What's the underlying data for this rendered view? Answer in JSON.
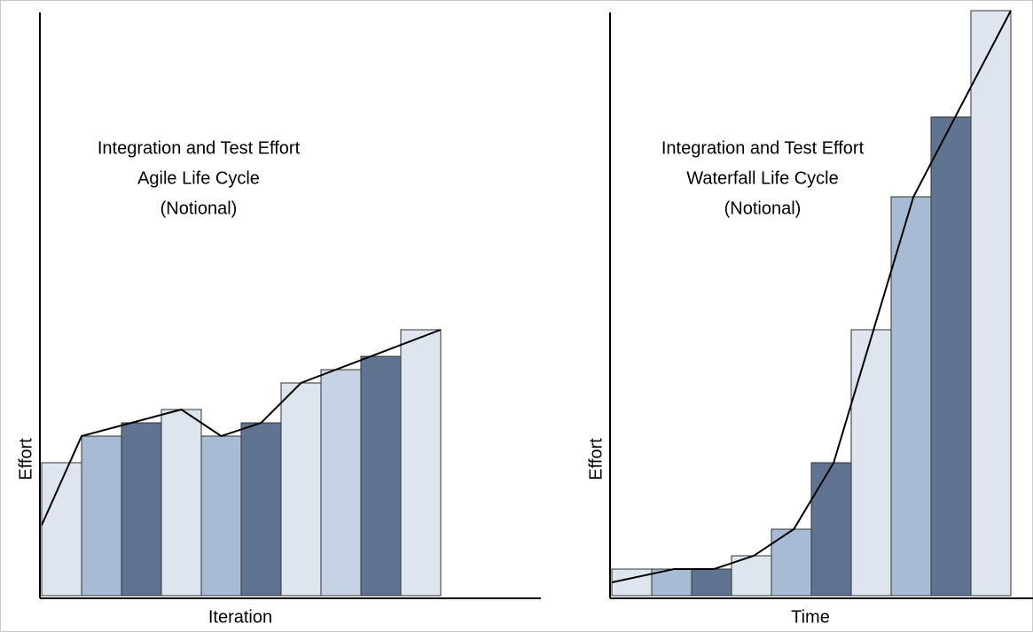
{
  "chart_data": [
    {
      "type": "bar",
      "title": [
        "Integration and Test Effort",
        "Agile Life Cycle",
        "(Notional)"
      ],
      "xlabel": "Iteration",
      "ylabel": "Effort",
      "values": [
        10,
        12,
        13,
        14,
        12,
        13,
        16,
        17,
        18,
        20
      ],
      "colors": [
        "#dde5ef",
        "#a8bbd5",
        "#607390",
        "#dde5ef",
        "#a8bbd5",
        "#607390",
        "#dde5ef",
        "#c6d3e4",
        "#607390",
        "#dde5ef"
      ],
      "line": {
        "x": [
          0,
          1,
          3.5,
          4.5,
          5.5,
          6.5,
          10
        ],
        "values": [
          5.3,
          12,
          14,
          12,
          13,
          16,
          20
        ],
        "color": "#000000"
      },
      "xlim": [
        0,
        10
      ],
      "ylim": [
        0,
        44
      ]
    },
    {
      "type": "bar",
      "title": [
        "Integration and Test Effort",
        "Waterfall Life Cycle",
        "(Notional)"
      ],
      "xlabel": "Time",
      "ylabel": "Effort",
      "values": [
        2,
        2,
        2,
        3,
        5,
        10,
        20,
        30,
        36,
        44
      ],
      "colors": [
        "#dde5ef",
        "#a8bbd5",
        "#607390",
        "#dde5ef",
        "#a8bbd5",
        "#607390",
        "#dde5ef",
        "#a8bbd5",
        "#607390",
        "#dde5ef"
      ],
      "line": {
        "x": [
          0,
          1.56,
          2.56,
          3.56,
          4.56,
          5.56,
          7.56,
          10
        ],
        "values": [
          1,
          2,
          2,
          3,
          5,
          10,
          30,
          44
        ],
        "color": "#000000"
      },
      "xlim": [
        0,
        10
      ],
      "ylim": [
        0,
        44
      ]
    }
  ]
}
